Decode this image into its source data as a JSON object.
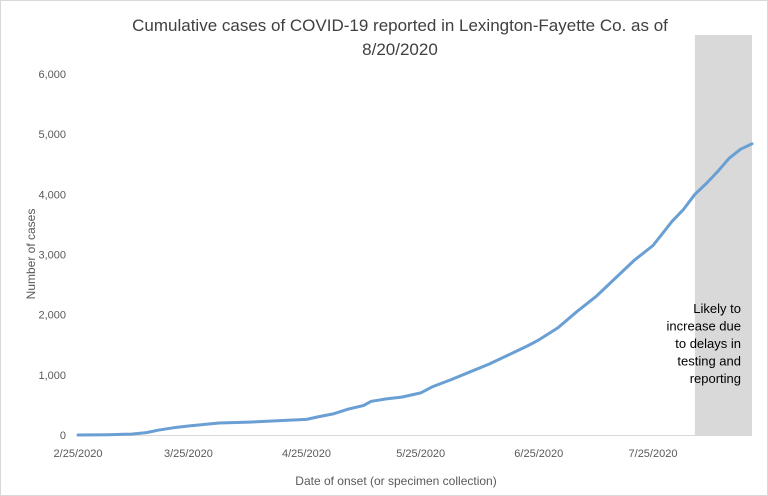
{
  "chart_data": {
    "type": "line",
    "title": "Cumulative cases of COVID-19 reported in Lexington-Fayette Co.  as of 8/20/2020",
    "title_lines": [
      "Cumulative cases of COVID-19 reported in Lexington-Fayette Co.  as of",
      "8/20/2020"
    ],
    "xlabel": "Date of onset (or specimen collection)",
    "ylabel": "Number of cases",
    "x_tick_labels": [
      "2/25/2020",
      "3/25/2020",
      "4/25/2020",
      "5/25/2020",
      "6/25/2020",
      "7/25/2020"
    ],
    "y_tick_labels": [
      "0",
      "1,000",
      "2,000",
      "3,000",
      "4,000",
      "5,000",
      "6,000"
    ],
    "ylim": [
      0,
      6000
    ],
    "xlim": [
      "2020-02-25",
      "2020-08-20"
    ],
    "line_color": "#6a9fd4",
    "shaded_region": {
      "start": "2020-08-05",
      "end": "2020-08-20",
      "color": "#d9d9d9"
    },
    "annotation": [
      "Likely to",
      "increase due",
      "to delays in",
      "testing and",
      "reporting"
    ],
    "grid": false,
    "legend": "none",
    "series": [
      {
        "x": [
          "2020-02-25",
          "2020-03-04",
          "2020-03-10",
          "2020-03-14",
          "2020-03-17",
          "2020-03-21",
          "2020-03-25",
          "2020-03-29",
          "2020-04-02",
          "2020-04-10",
          "2020-04-18",
          "2020-04-25",
          "2020-04-28",
          "2020-05-02",
          "2020-05-06",
          "2020-05-10",
          "2020-05-12",
          "2020-05-16",
          "2020-05-20",
          "2020-05-25",
          "2020-05-28",
          "2020-06-02",
          "2020-06-07",
          "2020-06-12",
          "2020-06-17",
          "2020-06-22",
          "2020-06-25",
          "2020-06-30",
          "2020-07-05",
          "2020-07-10",
          "2020-07-15",
          "2020-07-20",
          "2020-07-25",
          "2020-07-30",
          "2020-08-02",
          "2020-08-05",
          "2020-08-08",
          "2020-08-11",
          "2020-08-14",
          "2020-08-17",
          "2020-08-20"
        ],
        "y": [
          0,
          5,
          15,
          40,
          80,
          120,
          150,
          175,
          200,
          215,
          240,
          260,
          300,
          350,
          430,
          490,
          560,
          600,
          630,
          700,
          800,
          920,
          1050,
          1180,
          1330,
          1480,
          1580,
          1780,
          2050,
          2300,
          2600,
          2900,
          3150,
          3550,
          3750,
          4000,
          4180,
          4380,
          4600,
          4750,
          4840
        ]
      }
    ]
  }
}
